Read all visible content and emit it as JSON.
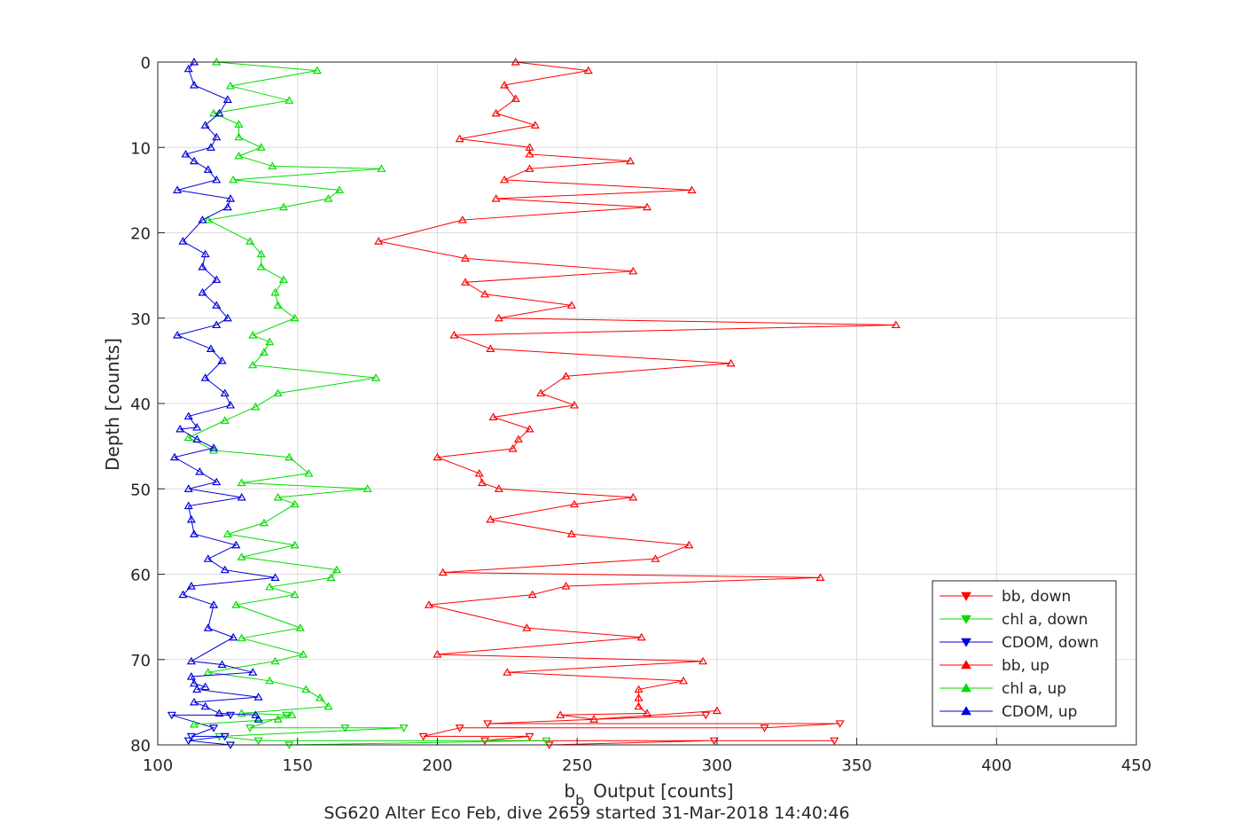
{
  "chart_data": {
    "type": "line",
    "x_label": "Output [counts]",
    "x_label_prefix": "b",
    "x_label_sub": "b",
    "y_label": "Depth [counts]",
    "footer": "SG620 Alter Eco Feb, dive 2659 started 31-Mar-2018 14:40:46",
    "xlim": [
      100,
      450
    ],
    "ylim": [
      0,
      80
    ],
    "y_reversed": true,
    "grid": true,
    "legend_position": "bottom-right",
    "x_ticks": [
      "100",
      "150",
      "200",
      "250",
      "300",
      "350",
      "400",
      "450"
    ],
    "y_ticks": [
      "0",
      "10",
      "20",
      "30",
      "40",
      "50",
      "60",
      "70",
      "80"
    ],
    "series": [
      {
        "name": "bb, down",
        "color": "#ff0000",
        "marker": "triangle-down",
        "points": [
          [
            240,
            80
          ],
          [
            299,
            79.5
          ],
          [
            342,
            79.5
          ],
          [
            217,
            79.5
          ],
          [
            233,
            79
          ],
          [
            195,
            79
          ],
          [
            208,
            78
          ],
          [
            317,
            78
          ],
          [
            344,
            77.5
          ],
          [
            218,
            77.5
          ],
          [
            296,
            76.5
          ]
        ]
      },
      {
        "name": "chl a, down",
        "color": "#00dd00",
        "marker": "triangle-down",
        "points": [
          [
            147,
            80
          ],
          [
            239,
            79.5
          ],
          [
            136,
            79.5
          ],
          [
            122,
            79
          ],
          [
            188,
            78
          ],
          [
            167,
            78
          ],
          [
            133,
            78
          ],
          [
            146,
            76.5
          ]
        ]
      },
      {
        "name": "CDOM, down",
        "color": "#0000dd",
        "marker": "triangle-down",
        "points": [
          [
            126,
            80
          ],
          [
            111,
            79.5
          ],
          [
            124,
            79
          ],
          [
            112,
            79
          ],
          [
            120,
            78
          ],
          [
            105,
            76.5
          ],
          [
            126,
            76.5
          ]
        ]
      },
      {
        "name": "bb, up",
        "color": "#ff0000",
        "marker": "triangle-up",
        "points": [
          [
            228,
            0
          ],
          [
            254,
            1
          ],
          [
            224,
            2.7
          ],
          [
            228,
            4.3
          ],
          [
            221,
            6
          ],
          [
            235,
            7.4
          ],
          [
            208,
            9
          ],
          [
            233,
            10
          ],
          [
            233,
            10.8
          ],
          [
            269,
            11.6
          ],
          [
            233,
            12.5
          ],
          [
            224,
            13.8
          ],
          [
            291,
            15
          ],
          [
            221,
            16
          ],
          [
            275,
            17
          ],
          [
            209,
            18.5
          ],
          [
            179,
            21
          ],
          [
            210,
            23
          ],
          [
            270,
            24.5
          ],
          [
            210,
            25.8
          ],
          [
            217,
            27.2
          ],
          [
            248,
            28.5
          ],
          [
            222,
            30
          ],
          [
            364,
            30.8
          ],
          [
            206,
            32
          ],
          [
            219,
            33.6
          ],
          [
            305,
            35.3
          ],
          [
            246,
            36.8
          ],
          [
            237,
            38.8
          ],
          [
            249,
            40.2
          ],
          [
            220,
            41.6
          ],
          [
            233,
            43
          ],
          [
            229,
            44.2
          ],
          [
            227,
            45.3
          ],
          [
            200,
            46.3
          ],
          [
            215,
            48.2
          ],
          [
            216,
            49.3
          ],
          [
            222,
            50
          ],
          [
            270,
            51
          ],
          [
            249,
            51.8
          ],
          [
            219,
            53.6
          ],
          [
            248,
            55.3
          ],
          [
            290,
            56.6
          ],
          [
            278,
            58.2
          ],
          [
            202,
            59.8
          ],
          [
            337,
            60.4
          ],
          [
            246,
            61.4
          ],
          [
            234,
            62.4
          ],
          [
            197,
            63.6
          ],
          [
            232,
            66.3
          ],
          [
            273,
            67.4
          ],
          [
            200,
            69.4
          ],
          [
            295,
            70.2
          ],
          [
            225,
            71.5
          ],
          [
            288,
            72.5
          ],
          [
            272,
            73.5
          ],
          [
            272,
            74.5
          ],
          [
            272,
            75.5
          ],
          [
            275,
            76.3
          ],
          [
            244,
            76.5
          ],
          [
            256,
            77
          ],
          [
            300,
            76
          ]
        ]
      },
      {
        "name": "chl a, up",
        "color": "#00dd00",
        "marker": "triangle-up",
        "points": [
          [
            121,
            0
          ],
          [
            157,
            1
          ],
          [
            126,
            2.8
          ],
          [
            147,
            4.5
          ],
          [
            120,
            6
          ],
          [
            129,
            7.3
          ],
          [
            129,
            8.8
          ],
          [
            137,
            10
          ],
          [
            129,
            11
          ],
          [
            141,
            12.2
          ],
          [
            180,
            12.5
          ],
          [
            127,
            13.8
          ],
          [
            165,
            15
          ],
          [
            161,
            16
          ],
          [
            145,
            17
          ],
          [
            118,
            18.5
          ],
          [
            133,
            21
          ],
          [
            137,
            22.5
          ],
          [
            137,
            24
          ],
          [
            145,
            25.5
          ],
          [
            142,
            27
          ],
          [
            143,
            28.5
          ],
          [
            149,
            30
          ],
          [
            134,
            32
          ],
          [
            140,
            32.8
          ],
          [
            138,
            34
          ],
          [
            134,
            35.5
          ],
          [
            178,
            37
          ],
          [
            143,
            38.8
          ],
          [
            135,
            40.4
          ],
          [
            124,
            42
          ],
          [
            111,
            44
          ],
          [
            120,
            45.5
          ],
          [
            147,
            46.3
          ],
          [
            154,
            48.2
          ],
          [
            130,
            49.3
          ],
          [
            175,
            50
          ],
          [
            143,
            51
          ],
          [
            149,
            51.8
          ],
          [
            138,
            54
          ],
          [
            125,
            55.3
          ],
          [
            149,
            56.6
          ],
          [
            130,
            58
          ],
          [
            164,
            59.5
          ],
          [
            162,
            60.4
          ],
          [
            140,
            61.5
          ],
          [
            149,
            62.4
          ],
          [
            128,
            63.6
          ],
          [
            151,
            66.3
          ],
          [
            130,
            67.5
          ],
          [
            152,
            69.4
          ],
          [
            142,
            70.2
          ],
          [
            118,
            71.5
          ],
          [
            140,
            72.5
          ],
          [
            153,
            73.5
          ],
          [
            158,
            74.5
          ],
          [
            161,
            75.5
          ],
          [
            130,
            76.3
          ],
          [
            148,
            76.5
          ],
          [
            143,
            77
          ],
          [
            113,
            77.6
          ]
        ]
      },
      {
        "name": "CDOM, up",
        "color": "#0000dd",
        "marker": "triangle-up",
        "points": [
          [
            113,
            0
          ],
          [
            111,
            0.8
          ],
          [
            113,
            2.7
          ],
          [
            125,
            4.4
          ],
          [
            122,
            6
          ],
          [
            117,
            7.4
          ],
          [
            121,
            8.8
          ],
          [
            119,
            10
          ],
          [
            110,
            10.8
          ],
          [
            113,
            11.6
          ],
          [
            118,
            12.6
          ],
          [
            121,
            13.8
          ],
          [
            107,
            15
          ],
          [
            126,
            16
          ],
          [
            125,
            17
          ],
          [
            116,
            18.5
          ],
          [
            109,
            21
          ],
          [
            117,
            22.5
          ],
          [
            116,
            24
          ],
          [
            121,
            25.5
          ],
          [
            116,
            27
          ],
          [
            121,
            28.5
          ],
          [
            125,
            30
          ],
          [
            121,
            30.8
          ],
          [
            107,
            32
          ],
          [
            119,
            33.6
          ],
          [
            123,
            35
          ],
          [
            117,
            37
          ],
          [
            124,
            38.8
          ],
          [
            126,
            40.2
          ],
          [
            111,
            41.5
          ],
          [
            114,
            42.8
          ],
          [
            108,
            43
          ],
          [
            114,
            44.2
          ],
          [
            120,
            45.2
          ],
          [
            106,
            46.3
          ],
          [
            115,
            48
          ],
          [
            121,
            49.2
          ],
          [
            111,
            50
          ],
          [
            130,
            51
          ],
          [
            111,
            52
          ],
          [
            112,
            53.6
          ],
          [
            113,
            55.3
          ],
          [
            128,
            56.6
          ],
          [
            118,
            58.2
          ],
          [
            124,
            59.5
          ],
          [
            142,
            60.4
          ],
          [
            112,
            61.4
          ],
          [
            109,
            62.4
          ],
          [
            120,
            63.6
          ],
          [
            118,
            66.3
          ],
          [
            127,
            67.4
          ],
          [
            112,
            70.2
          ],
          [
            123,
            70.6
          ],
          [
            134,
            71.5
          ],
          [
            112,
            72
          ],
          [
            113,
            72.8
          ],
          [
            117,
            73.2
          ],
          [
            114,
            73.5
          ],
          [
            136,
            74.4
          ],
          [
            113,
            75
          ],
          [
            117,
            75.5
          ],
          [
            122,
            76.3
          ],
          [
            135,
            76.5
          ],
          [
            136,
            77
          ]
        ]
      }
    ]
  }
}
